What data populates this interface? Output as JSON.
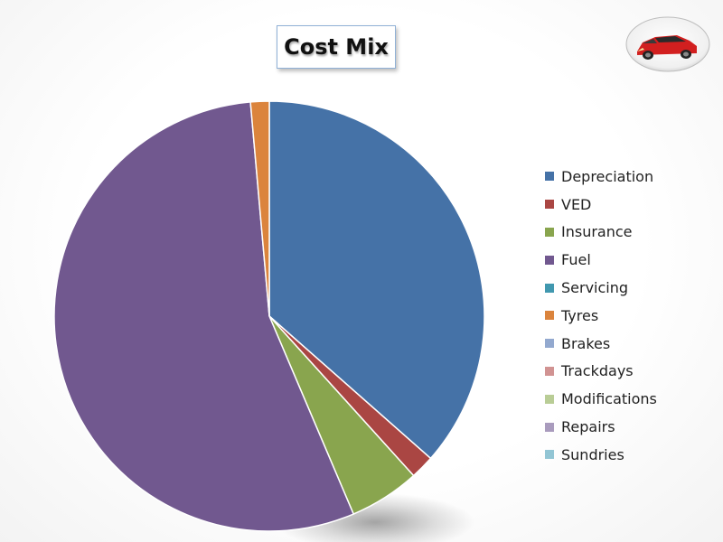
{
  "chart_data": {
    "type": "pie",
    "title": "Cost Mix",
    "legend_position": "right",
    "categories": [
      "Depreciation",
      "VED",
      "Insurance",
      "Fuel",
      "Servicing",
      "Tyres",
      "Brakes",
      "Trackdays",
      "Modifications",
      "Repairs",
      "Sundries"
    ],
    "values": [
      36.5,
      1.8,
      5.3,
      55.0,
      0,
      1.4,
      0,
      0,
      0,
      0,
      0
    ],
    "colors": [
      "#4572a7",
      "#aa4643",
      "#89a54e",
      "#71588f",
      "#4198af",
      "#db843d",
      "#93a9cf",
      "#d19392",
      "#b9cd96",
      "#a99bbd",
      "#92c5d4"
    ]
  },
  "badge": {
    "icon": "red-hatchback-car-icon"
  }
}
